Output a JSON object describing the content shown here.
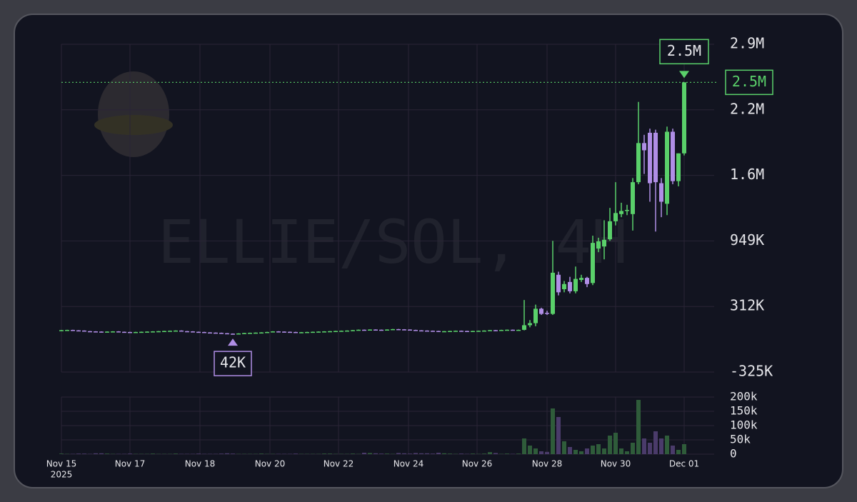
{
  "chart_data": {
    "type": "candlestick",
    "watermark": "ELLIE/SOL, 4H",
    "colors": {
      "up": "#5ad06a",
      "down": "#b08ee6",
      "volume_up": "#2f5c3a",
      "volume_down": "#4a3b6a"
    },
    "grid": true,
    "ylim": [
      -325,
      2860
    ],
    "yticks": [
      {
        "value": -325,
        "label": "-325K"
      },
      {
        "value": 312,
        "label": "312K"
      },
      {
        "value": 949,
        "label": "949K"
      },
      {
        "value": 1586,
        "label": "1.6M"
      },
      {
        "value": 2223,
        "label": "2.2M"
      },
      {
        "value": 2860,
        "label": "2.9M"
      }
    ],
    "volume_ylim": [
      0,
      200
    ],
    "volume_yticks": [
      0,
      {
        "value": 50,
        "label": "50k"
      },
      {
        "value": 100,
        "label": "100k"
      },
      {
        "value": 150,
        "label": "150k"
      },
      {
        "value": 200,
        "label": "200k"
      }
    ],
    "xlim": [
      0,
      109
    ],
    "xticks": [
      {
        "value": 0,
        "label": "Nov 15"
      },
      {
        "value": 12,
        "label": "Nov 17"
      },
      {
        "value": 24.25,
        "label": "Nov 18"
      },
      {
        "value": 36.5,
        "label": "Nov 20"
      },
      {
        "value": 48.5,
        "label": "Nov 22"
      },
      {
        "value": 60.75,
        "label": "Nov 24"
      },
      {
        "value": 72.75,
        "label": "Nov 26"
      },
      {
        "value": 85,
        "label": "Nov 28"
      },
      {
        "value": 97,
        "label": "Nov 30"
      },
      {
        "value": 109,
        "label": "Dec 01"
      }
    ],
    "x_year_label": "2025",
    "last_price": {
      "value": 2490,
      "label": "2.5M"
    },
    "max_marker": {
      "x": 109,
      "value": 2490,
      "label": "2.5M"
    },
    "min_marker": {
      "x": 30,
      "value": 42,
      "label": "42K"
    },
    "open": [
      80,
      82,
      84,
      80,
      78,
      72,
      70,
      68,
      66,
      68,
      70,
      66,
      64,
      62,
      64,
      66,
      68,
      70,
      72,
      74,
      76,
      78,
      72,
      70,
      66,
      64,
      60,
      58,
      56,
      52,
      48,
      46,
      50,
      54,
      56,
      58,
      60,
      64,
      70,
      68,
      66,
      64,
      62,
      62,
      64,
      66,
      68,
      70,
      72,
      74,
      76,
      78,
      82,
      86,
      84,
      88,
      86,
      84,
      88,
      92,
      90,
      88,
      84,
      80,
      78,
      76,
      74,
      72,
      72,
      74,
      76,
      74,
      72,
      74,
      76,
      78,
      82,
      80,
      84,
      86,
      85,
      85,
      130,
      150,
      290,
      250,
      240,
      620,
      480,
      550,
      460,
      570,
      590,
      540,
      875,
      895,
      965,
      1140,
      1210,
      1240,
      1210,
      1520,
      1900,
      2000,
      2000,
      1510,
      1310,
      2010,
      1530,
      1800
    ],
    "high": [
      84,
      86,
      86,
      82,
      80,
      74,
      72,
      70,
      70,
      72,
      72,
      68,
      66,
      66,
      68,
      70,
      72,
      74,
      76,
      78,
      80,
      80,
      74,
      72,
      68,
      66,
      62,
      60,
      58,
      54,
      50,
      52,
      56,
      58,
      60,
      62,
      66,
      72,
      72,
      70,
      68,
      66,
      64,
      66,
      68,
      70,
      72,
      74,
      76,
      78,
      80,
      84,
      88,
      88,
      90,
      90,
      88,
      90,
      94,
      94,
      92,
      90,
      86,
      82,
      80,
      78,
      76,
      74,
      76,
      78,
      78,
      76,
      76,
      78,
      80,
      84,
      84,
      86,
      88,
      88,
      87,
      375,
      180,
      330,
      300,
      270,
      950,
      650,
      560,
      600,
      700,
      620,
      600,
      1000,
      980,
      1150,
      1270,
      1520,
      1320,
      1300,
      1560,
      2300,
      1980,
      2040,
      2030,
      1560,
      2060,
      2040,
      1800,
      2490
    ],
    "low": [
      78,
      80,
      78,
      76,
      70,
      68,
      66,
      64,
      64,
      66,
      64,
      62,
      60,
      60,
      62,
      64,
      66,
      68,
      70,
      72,
      74,
      70,
      68,
      64,
      62,
      58,
      56,
      54,
      50,
      46,
      42,
      44,
      48,
      52,
      54,
      56,
      58,
      62,
      66,
      64,
      62,
      60,
      60,
      60,
      62,
      64,
      66,
      68,
      70,
      72,
      74,
      76,
      80,
      82,
      82,
      84,
      82,
      82,
      86,
      88,
      86,
      82,
      78,
      76,
      74,
      72,
      70,
      70,
      70,
      72,
      72,
      70,
      70,
      72,
      74,
      76,
      78,
      78,
      82,
      83,
      83,
      80,
      110,
      120,
      230,
      230,
      230,
      420,
      450,
      440,
      440,
      550,
      500,
      520,
      840,
      770,
      950,
      1100,
      1180,
      1200,
      1050,
      1500,
      1600,
      1330,
      1040,
      1180,
      1200,
      1500,
      1480,
      1780
    ],
    "close": [
      82,
      84,
      80,
      78,
      72,
      70,
      68,
      66,
      68,
      70,
      66,
      64,
      62,
      64,
      66,
      68,
      70,
      72,
      74,
      76,
      78,
      72,
      70,
      66,
      64,
      60,
      58,
      56,
      52,
      48,
      46,
      50,
      54,
      56,
      58,
      60,
      64,
      70,
      68,
      66,
      64,
      62,
      62,
      64,
      66,
      68,
      70,
      72,
      74,
      76,
      78,
      82,
      86,
      84,
      88,
      86,
      84,
      88,
      92,
      90,
      88,
      84,
      80,
      78,
      76,
      74,
      72,
      72,
      74,
      76,
      74,
      72,
      74,
      76,
      78,
      82,
      80,
      84,
      86,
      85,
      85,
      130,
      150,
      290,
      240,
      240,
      640,
      450,
      530,
      460,
      580,
      590,
      530,
      930,
      945,
      960,
      1140,
      1220,
      1240,
      1250,
      1520,
      1900,
      1830,
      1510,
      1520,
      1330,
      2010,
      1530,
      1800,
      2490
    ],
    "volume": [
      2,
      1,
      1,
      2,
      2,
      1,
      3,
      3,
      2,
      1,
      1,
      1,
      2,
      1,
      1,
      1,
      2,
      1,
      1,
      1,
      2,
      1,
      1,
      1,
      2,
      1,
      1,
      1,
      2,
      3,
      2,
      1,
      1,
      1,
      1,
      2,
      1,
      1,
      1,
      1,
      1,
      2,
      1,
      1,
      1,
      1,
      2,
      2,
      1,
      1,
      1,
      2,
      1,
      5,
      4,
      3,
      2,
      2,
      1,
      4,
      3,
      2,
      4,
      3,
      3,
      2,
      5,
      3,
      2,
      1,
      2,
      1,
      2,
      1,
      2,
      7,
      4,
      1,
      2,
      1,
      2,
      55,
      30,
      20,
      10,
      8,
      160,
      130,
      45,
      25,
      15,
      10,
      20,
      30,
      35,
      20,
      65,
      75,
      20,
      10,
      40,
      190,
      55,
      40,
      80,
      55,
      65,
      30,
      15,
      35
    ]
  }
}
